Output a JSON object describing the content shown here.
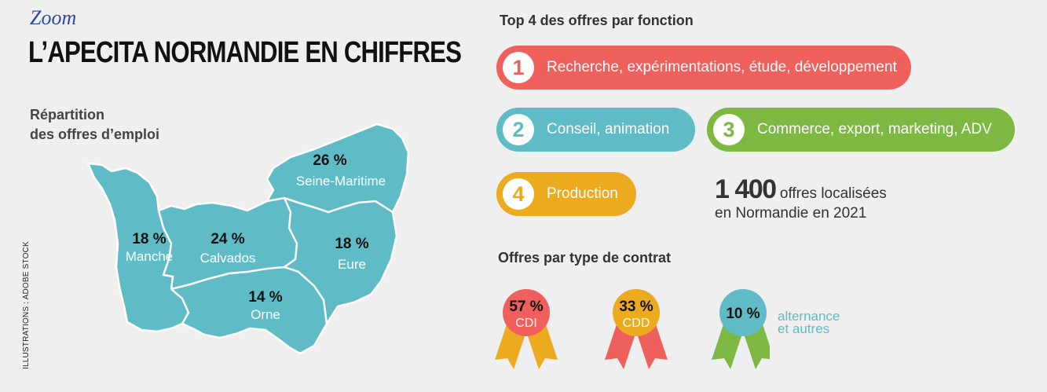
{
  "header": {
    "zoom": "Zoom",
    "title": "L’APECITA NORMANDIE EN CHIFFRES"
  },
  "map_section": {
    "subtitle_line1": "Répartition",
    "subtitle_line2": "des offres d’emploi",
    "regions": [
      {
        "name": "Seine-Maritime",
        "pct": "26 %"
      },
      {
        "name": "Manche",
        "pct": "18 %"
      },
      {
        "name": "Calvados",
        "pct": "24 %"
      },
      {
        "name": "Eure",
        "pct": "18 %"
      },
      {
        "name": "Orne",
        "pct": "14 %"
      }
    ],
    "color": "#5fbcc7"
  },
  "credit": "ILLUSTRATIONS : ADOBE STOCK",
  "top4": {
    "title": "Top 4 des offres par fonction",
    "items": [
      {
        "num": "1",
        "label": "Recherche, expérimentations, étude, développement",
        "color": "#ef5f5b"
      },
      {
        "num": "2",
        "label": "Conseil, animation",
        "color": "#5fbcc7"
      },
      {
        "num": "3",
        "label": "Commerce, export, marketing, ADV",
        "color": "#7cb842"
      },
      {
        "num": "4",
        "label": "Production",
        "color": "#ecaa1f"
      }
    ]
  },
  "offers": {
    "count": "1 400",
    "text1": " offres localisées",
    "text2": "en Normandie en 2021"
  },
  "contracts": {
    "title": "Offres par type de contrat",
    "items": [
      {
        "pct": "57 %",
        "label": "CDI",
        "color": "#ef5f5b",
        "ribbon": "#ecaa1f"
      },
      {
        "pct": "33 %",
        "label": "CDD",
        "color": "#ecaa1f",
        "ribbon": "#ef5f5b"
      },
      {
        "pct": "10 %",
        "label_line1": "alternance",
        "label_line2": "et autres",
        "color": "#5fbcc7",
        "ribbon": "#7cb842"
      }
    ]
  }
}
